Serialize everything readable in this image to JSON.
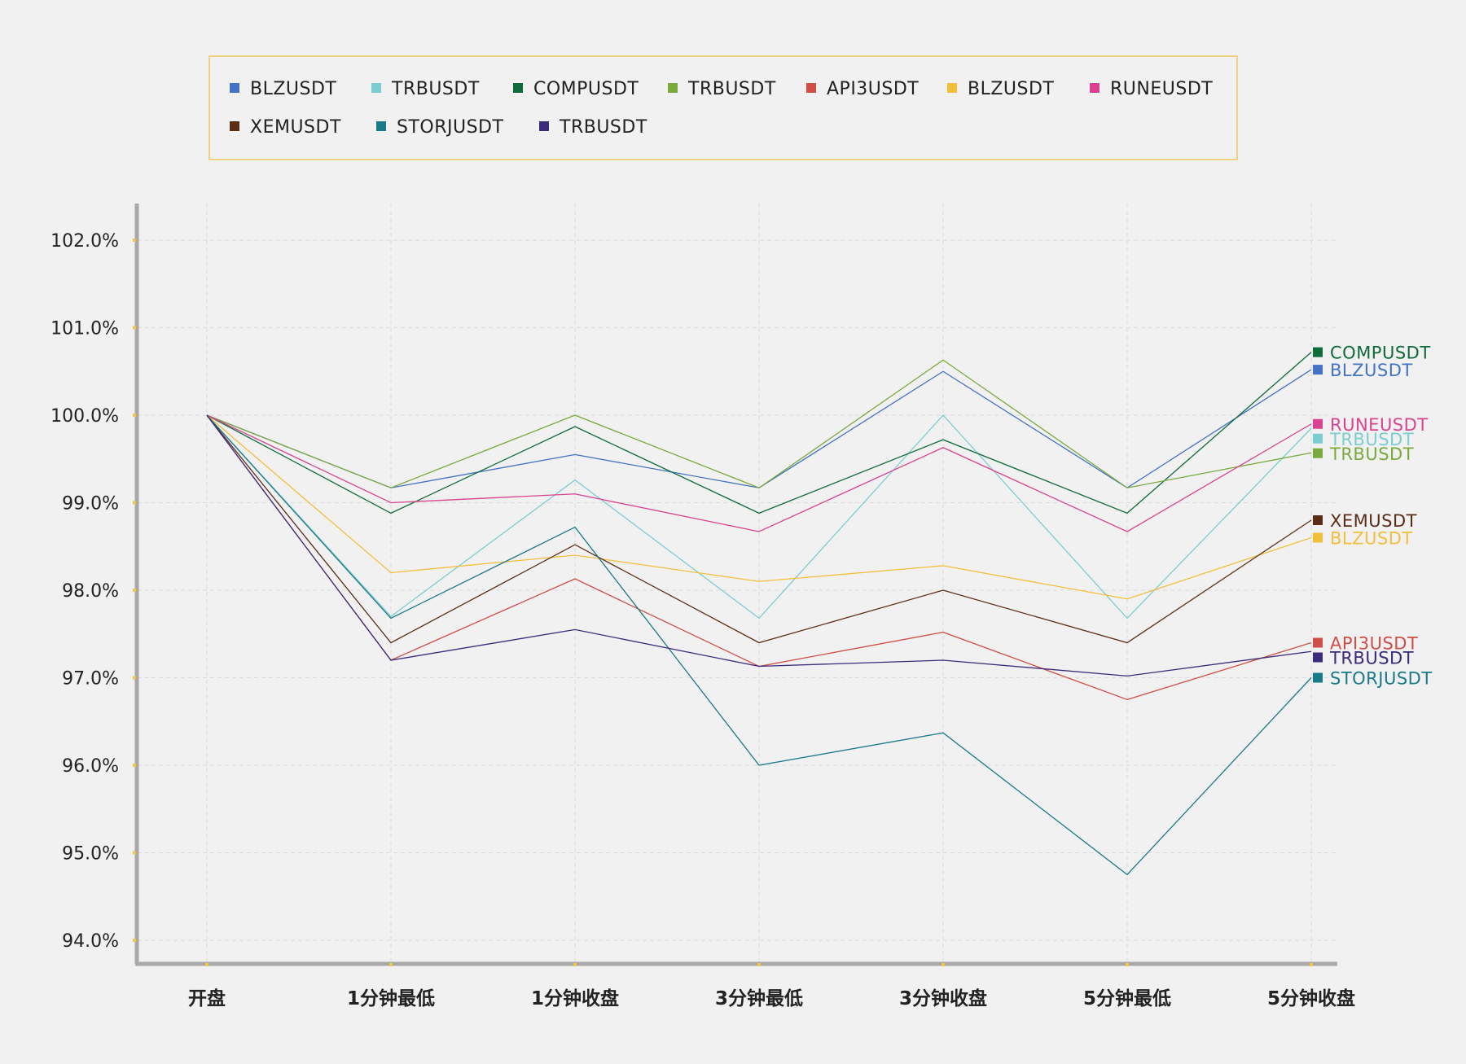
{
  "chart_data": {
    "type": "line",
    "categories": [
      "开盘",
      "1分钟最低",
      "1分钟收盘",
      "3分钟最低",
      "3分钟收盘",
      "5分钟最低",
      "5分钟收盘"
    ],
    "ylim": [
      93.75,
      102.4
    ],
    "yticks": [
      94,
      95,
      96,
      97,
      98,
      99,
      100,
      101,
      102
    ],
    "ytick_labels": [
      "94.0%",
      "95.0%",
      "96.0%",
      "97.0%",
      "98.0%",
      "99.0%",
      "100.0%",
      "101.0%",
      "102.0%"
    ],
    "grid": true,
    "legend_position": "top",
    "series": [
      {
        "name": "BLZUSDT",
        "color": "#4472c4",
        "values": [
          100.0,
          99.17,
          99.55,
          99.17,
          100.5,
          99.17,
          100.52
        ]
      },
      {
        "name": "TRBUSDT",
        "color": "#7ccdd0",
        "values": [
          100.0,
          97.7,
          99.26,
          97.68,
          100.0,
          97.68,
          99.85
        ]
      },
      {
        "name": "COMPUSDT",
        "color": "#0f6b3a",
        "values": [
          100.0,
          98.88,
          99.87,
          98.88,
          99.72,
          98.88,
          100.72
        ]
      },
      {
        "name": "TRBUSDT",
        "color": "#7aa93c",
        "values": [
          100.0,
          99.17,
          100.0,
          99.17,
          100.63,
          99.17,
          99.57
        ]
      },
      {
        "name": "API3USDT",
        "color": "#cf4f48",
        "values": [
          100.0,
          97.2,
          98.13,
          97.13,
          97.52,
          96.75,
          97.4
        ]
      },
      {
        "name": "BLZUSDT",
        "color": "#f3bf3a",
        "values": [
          100.0,
          98.2,
          98.4,
          98.1,
          98.28,
          97.9,
          98.6
        ]
      },
      {
        "name": "RUNEUSDT",
        "color": "#d9438f",
        "values": [
          100.0,
          99.0,
          99.1,
          98.67,
          99.63,
          98.67,
          99.9
        ]
      },
      {
        "name": "XEMUSDT",
        "color": "#5c2d16",
        "values": [
          100.0,
          97.4,
          98.52,
          97.4,
          98.0,
          97.4,
          98.8
        ]
      },
      {
        "name": "STORJUSDT",
        "color": "#197a8a",
        "values": [
          100.0,
          97.68,
          98.72,
          96.0,
          96.37,
          94.75,
          97.0
        ]
      },
      {
        "name": "TRBUSDT",
        "color": "#3c2a7a",
        "values": [
          100.0,
          97.2,
          97.55,
          97.13,
          97.2,
          97.02,
          97.3
        ]
      }
    ]
  }
}
